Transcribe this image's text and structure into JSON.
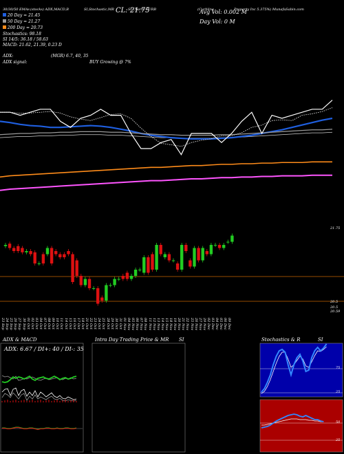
{
  "header": {
    "line1_left": "30/30/50 EMAs",
    "line1_mid1": "(stocks) ADX,MACD,B",
    "line1_mid2": "SI,Stochastic,MR",
    "line1_mid3": "SI Charts CURB",
    "line1_right": "(Curbline",
    "line1_far": "Property Inc 5.375%) MunafaSabin.com",
    "ema20": "20 Day = 21.45",
    "ema50": "50 Day = 21.27",
    "ema200": "200 Day = 20.73",
    "stochastics": "Stochastics: 98.18",
    "si": "SI 14/5: 36.18 / 58.63",
    "macd": "MACD: 21.62, 21.39, 0.23 D",
    "adx_label": "ADX:",
    "adx_value": "(MGR) 6.7, 40, 35",
    "adx_signal_label": "ADX signal:",
    "adx_signal_value": "BUY Growing @ 7%",
    "price_big": "CL: 21.75",
    "avg_vol": "Avg Vol: 0.002  M",
    "day_vol": "Day Vol: 0   M"
  },
  "colors": {
    "ema20": "#1f5fe0",
    "ema50": "#9a9a9a",
    "ema200": "#ff8c1a",
    "magenta": "#ff55ff",
    "up": "#22cc22",
    "down": "#dd1111",
    "orange_line": "#cc6600",
    "stoch_bg": "#0000aa",
    "rsi_bg": "#aa0000"
  },
  "chart_data": [
    {
      "type": "line",
      "title": "",
      "series": [
        {
          "name": "20 Day",
          "values": [
            21.4,
            21.38,
            21.35,
            21.33,
            21.32,
            21.3,
            21.3,
            21.31,
            21.32,
            21.33,
            21.32,
            21.3,
            21.27,
            21.24,
            21.2,
            21.17,
            21.15,
            21.13,
            21.12,
            21.11,
            21.11,
            21.11,
            21.12,
            21.13,
            21.15,
            21.17,
            21.2,
            21.23,
            21.26,
            21.3,
            21.34,
            21.38,
            21.42,
            21.45
          ]
        },
        {
          "name": "50 Day",
          "values": [
            21.18,
            21.19,
            21.2,
            21.2,
            21.21,
            21.21,
            21.22,
            21.22,
            21.23,
            21.23,
            21.23,
            21.22,
            21.22,
            21.21,
            21.2,
            21.19,
            21.18,
            21.18,
            21.17,
            21.17,
            21.17,
            21.17,
            21.18,
            21.18,
            21.19,
            21.2,
            21.21,
            21.22,
            21.23,
            21.24,
            21.25,
            21.26,
            21.26,
            21.27
          ]
        },
        {
          "name": "200 Day",
          "values": [
            20.48,
            20.5,
            20.51,
            20.52,
            20.53,
            20.54,
            20.55,
            20.56,
            20.57,
            20.58,
            20.59,
            20.6,
            20.61,
            20.62,
            20.63,
            20.64,
            20.64,
            20.65,
            20.66,
            20.67,
            20.67,
            20.68,
            20.69,
            20.69,
            20.7,
            20.7,
            20.71,
            20.71,
            20.72,
            20.72,
            20.72,
            20.73,
            20.73,
            20.73
          ]
        },
        {
          "name": "Close",
          "values": [
            21.55,
            21.55,
            21.5,
            21.55,
            21.6,
            21.6,
            21.4,
            21.3,
            21.45,
            21.5,
            21.6,
            21.5,
            21.5,
            21.2,
            20.95,
            20.95,
            21.05,
            21.1,
            20.85,
            21.2,
            21.2,
            21.2,
            21.05,
            21.2,
            21.4,
            21.55,
            21.2,
            21.5,
            21.45,
            21.5,
            21.55,
            21.6,
            21.6,
            21.75
          ]
        }
      ]
    },
    {
      "type": "bar",
      "title": "",
      "ylabels": [
        "21.75",
        "20.5",
        "20.5",
        "20.59"
      ],
      "categories": [
        "23 Sep",
        "24 Sep",
        "25 Sep",
        "26 Sep",
        "27 Sep",
        "30 Sep",
        "01 Oct",
        "02 Oct",
        "03 Oct",
        "04 Oct",
        "07 Oct",
        "08 Oct",
        "09 Oct",
        "10 Oct",
        "11 Oct",
        "14 Oct",
        "15 Oct",
        "16 Oct",
        "17 Oct",
        "18 Oct",
        "21 Oct",
        "22 Oct",
        "23 Oct",
        "24 Oct",
        "25 Oct",
        "28 Oct",
        "29 Oct",
        "30 Oct",
        "31 Oct",
        "01 Nov",
        "04 Nov",
        "05 Nov",
        "06 Nov",
        "07 Nov",
        "08 Nov",
        "11 Nov",
        "12 Nov",
        "13 Nov",
        "14 Nov",
        "15 Nov",
        "18 Nov",
        "19 Nov",
        "20 Nov",
        "21 Nov",
        "22 Nov",
        "25 Nov",
        "26 Nov",
        "27 Nov",
        "29 Nov",
        "02 Dec",
        "03 Dec",
        "04 Dec",
        "05 Dec",
        "06 Dec",
        "09 Dec"
      ],
      "candles": [
        {
          "o": 21.58,
          "c": 21.6
        },
        {
          "o": 21.62,
          "c": 21.55
        },
        {
          "o": 21.55,
          "c": 21.5
        },
        {
          "o": 21.58,
          "c": 21.5
        },
        {
          "o": 21.55,
          "c": 21.48
        },
        {
          "o": 21.48,
          "c": 21.5
        },
        {
          "o": 21.5,
          "c": 21.45
        },
        {
          "o": 21.48,
          "c": 21.3
        },
        {
          "o": 21.3,
          "c": 21.3
        },
        {
          "o": 21.45,
          "c": 21.3
        },
        {
          "o": 21.45,
          "c": 21.55
        },
        {
          "o": 21.55,
          "c": 21.3
        },
        {
          "o": 21.5,
          "c": 21.45
        },
        {
          "o": 21.45,
          "c": 21.4
        },
        {
          "o": 21.45,
          "c": 21.4
        },
        {
          "o": 21.5,
          "c": 21.45
        },
        {
          "o": 21.45,
          "c": 21.0
        },
        {
          "o": 21.35,
          "c": 21.1
        },
        {
          "o": 21.1,
          "c": 20.95
        },
        {
          "o": 20.95,
          "c": 21.05
        },
        {
          "o": 21.05,
          "c": 20.9
        },
        {
          "o": 20.9,
          "c": 20.9
        },
        {
          "o": 20.9,
          "c": 20.65
        },
        {
          "o": 20.75,
          "c": 20.7
        },
        {
          "o": 20.7,
          "c": 20.95
        },
        {
          "o": 20.95,
          "c": 20.95
        },
        {
          "o": 20.95,
          "c": 21.05
        },
        {
          "o": 21.05,
          "c": 21.05
        },
        {
          "o": 21.1,
          "c": 21.05
        },
        {
          "o": 21.15,
          "c": 21.05
        },
        {
          "o": 21.05,
          "c": 21.1
        },
        {
          "o": 21.1,
          "c": 21.2
        },
        {
          "o": 21.2,
          "c": 21.2
        },
        {
          "o": 21.15,
          "c": 21.4
        },
        {
          "o": 21.4,
          "c": 21.15
        },
        {
          "o": 21.45,
          "c": 21.2
        },
        {
          "o": 21.2,
          "c": 21.6
        },
        {
          "o": 21.6,
          "c": 21.45
        },
        {
          "o": 21.4,
          "c": 21.45
        },
        {
          "o": 21.45,
          "c": 21.35
        },
        {
          "o": 21.35,
          "c": 21.35
        },
        {
          "o": 21.3,
          "c": 21.2
        },
        {
          "o": 21.2,
          "c": 21.6
        },
        {
          "o": 21.6,
          "c": 21.5
        },
        {
          "o": 21.35,
          "c": 21.25
        },
        {
          "o": 21.25,
          "c": 21.55
        },
        {
          "o": 21.55,
          "c": 21.35
        },
        {
          "o": 21.35,
          "c": 21.55
        },
        {
          "o": 21.5,
          "c": 21.45
        },
        {
          "o": 21.45,
          "c": 21.6
        },
        {
          "o": 21.6,
          "c": 21.6
        },
        {
          "o": 21.6,
          "c": 21.55
        },
        {
          "o": 21.55,
          "c": 21.6
        },
        {
          "o": 21.65,
          "c": 21.65
        },
        {
          "o": 21.65,
          "c": 21.75
        }
      ]
    },
    {
      "type": "line",
      "title": "ADX  & MACD",
      "annotation": "ADX: 6.67 / DI+: 40 / DI-: 35"
    },
    {
      "type": "table",
      "title": "Intra  Day Trading Price  & MR",
      "title_suffix": "SI"
    },
    {
      "type": "line",
      "title": "Stochastics & R",
      "title_suffix": "SI",
      "stoch_ticks": [
        "75",
        "25"
      ],
      "rsi_ticks": [
        "50",
        "25"
      ]
    }
  ]
}
